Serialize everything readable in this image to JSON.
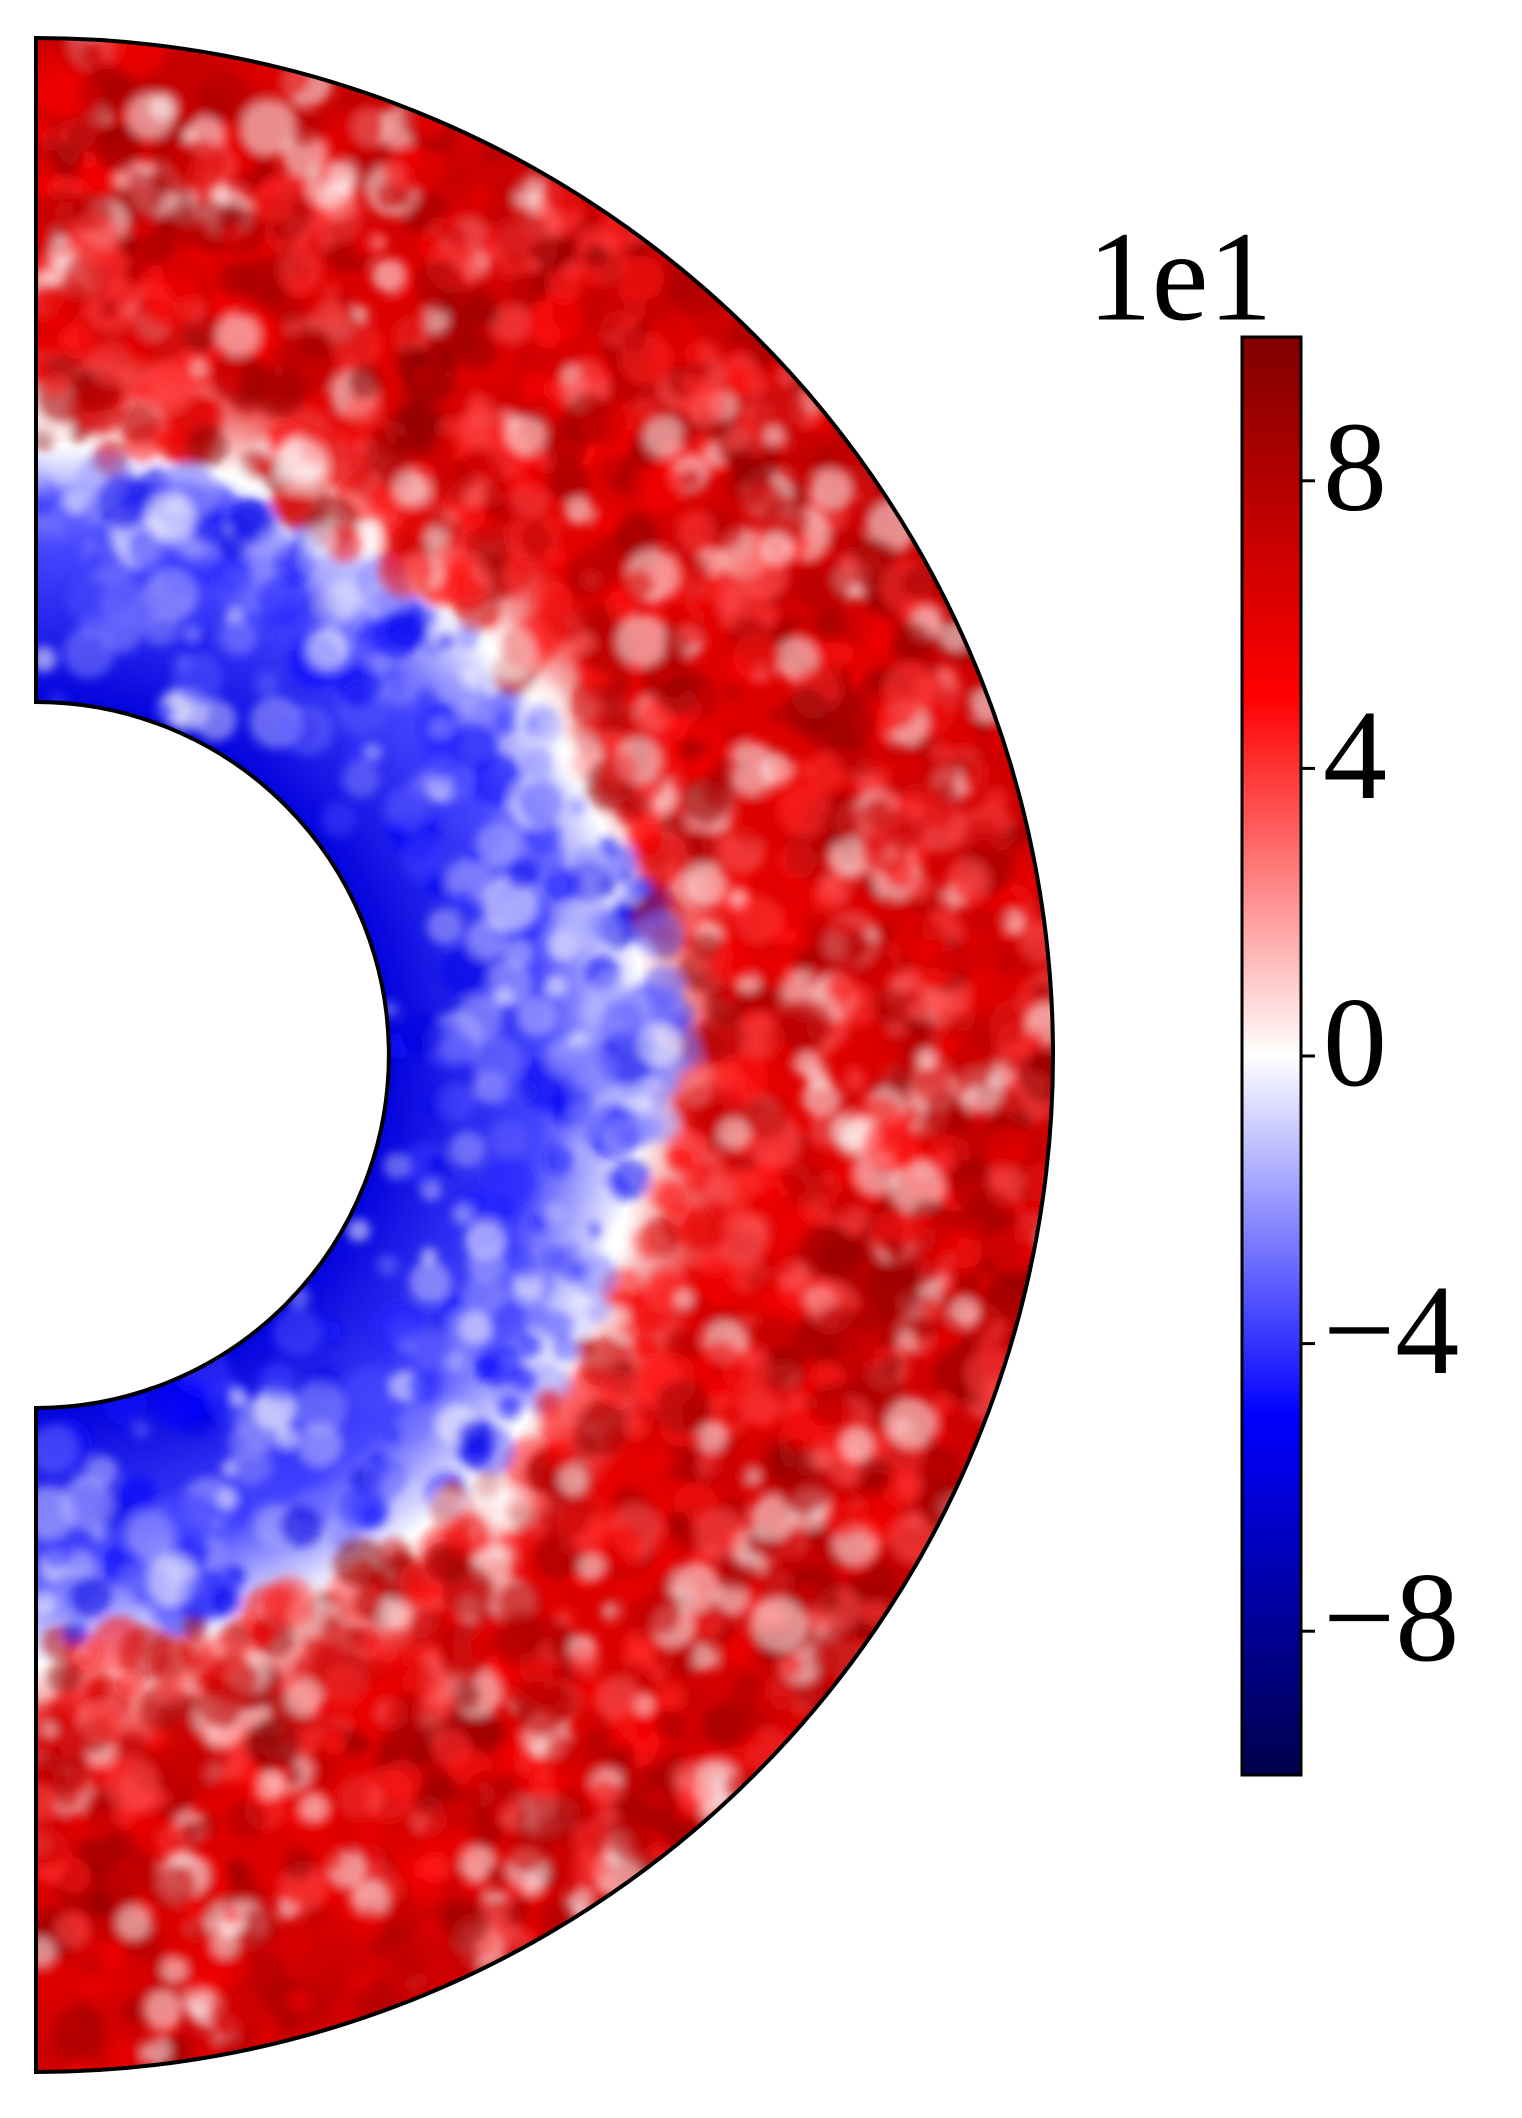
{
  "chart_data": {
    "type": "heatmap",
    "colorbar": {
      "offset_label": "1e1",
      "clim": [
        -10,
        10
      ],
      "ticks": [
        {
          "value": -8,
          "label": "−8"
        },
        {
          "value": -4,
          "label": "−4"
        },
        0,
        4,
        8
      ],
      "colors": [
        "#00004c",
        "#0000ff",
        "#ffffff",
        "#ff0000",
        "#800000"
      ]
    }
  }
}
